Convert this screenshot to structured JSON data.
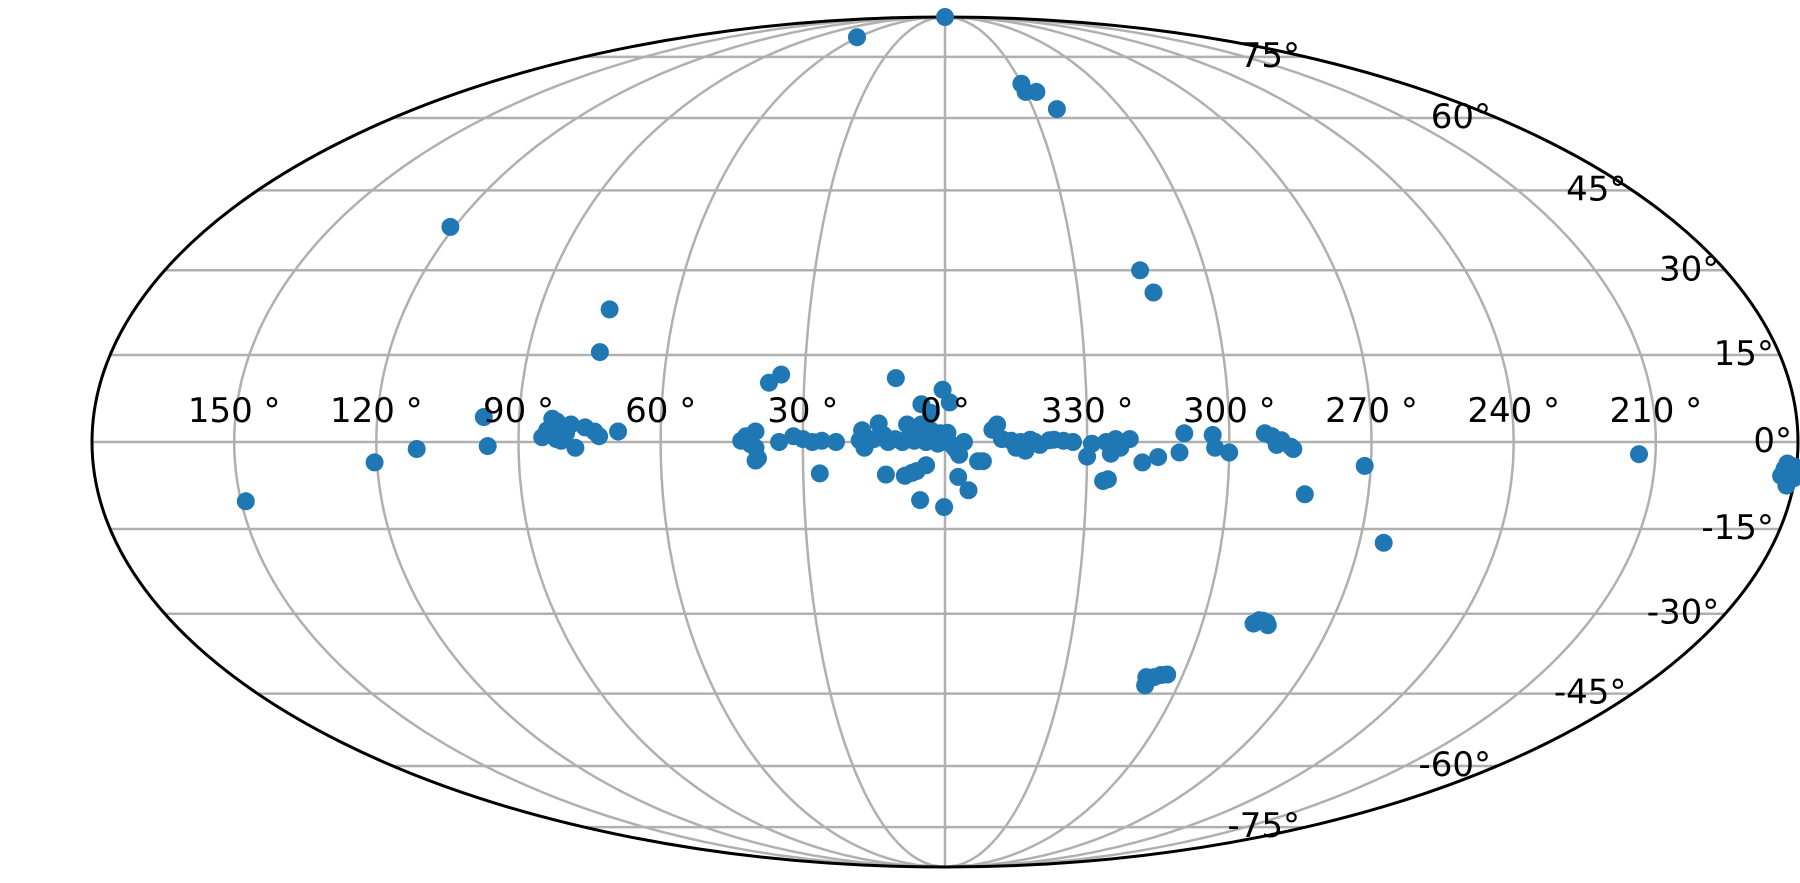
{
  "chart_data": {
    "type": "scatter",
    "projection": "mollweide",
    "title": "",
    "xlabel": "",
    "ylabel": "",
    "grid": true,
    "lon_tick_labels": [
      "150 °",
      "120 °",
      "90 °",
      "60 °",
      "30 °",
      "0 °",
      "330 °",
      "300 °",
      "270 °",
      "240 °",
      "210 °"
    ],
    "lon_tick_values": [
      150,
      120,
      90,
      60,
      30,
      0,
      330,
      300,
      270,
      240,
      210
    ],
    "lat_tick_labels": [
      "-75°",
      "-60°",
      "-45°",
      "-30°",
      "-15°",
      "0°",
      "15°",
      "30°",
      "45°",
      "60°",
      "75°"
    ],
    "lat_tick_values": [
      -75,
      -60,
      -45,
      -30,
      -15,
      0,
      15,
      30,
      45,
      60,
      75
    ],
    "colors": {
      "points": "#1f77b4",
      "grid": "#b0b0b0",
      "frame": "#000000"
    },
    "points": [
      {
        "lon": 61,
        "lat": 81
      },
      {
        "lon": 357,
        "lat": 90
      },
      {
        "lon": 330,
        "lat": 68
      },
      {
        "lon": 330,
        "lat": 66
      },
      {
        "lon": 326,
        "lat": 66
      },
      {
        "lon": 322,
        "lat": 62
      },
      {
        "lon": 121,
        "lat": 38
      },
      {
        "lon": 315,
        "lat": 30
      },
      {
        "lon": 313,
        "lat": 26
      },
      {
        "lon": 74.5,
        "lat": 23
      },
      {
        "lon": 74.5,
        "lat": 15.5
      },
      {
        "lon": 37.5,
        "lat": 10.2
      },
      {
        "lon": 35,
        "lat": 11.6
      },
      {
        "lon": 10.5,
        "lat": 11
      },
      {
        "lon": 0.5,
        "lat": 9
      },
      {
        "lon": 359,
        "lat": 6.8
      },
      {
        "lon": 5,
        "lat": 6.5
      },
      {
        "lon": 3,
        "lat": 5
      },
      {
        "lon": 83,
        "lat": 4
      },
      {
        "lon": 82,
        "lat": 3.5
      },
      {
        "lon": 79,
        "lat": 3
      },
      {
        "lon": 76,
        "lat": 2.5
      },
      {
        "lon": 80,
        "lat": 1.5
      },
      {
        "lon": 84,
        "lat": 2
      },
      {
        "lon": 74,
        "lat": 1.8
      },
      {
        "lon": 69,
        "lat": 1.8
      },
      {
        "lon": 85,
        "lat": 0.8
      },
      {
        "lon": 81,
        "lat": 0.2
      },
      {
        "lon": 78,
        "lat": -1
      },
      {
        "lon": 73,
        "lat": 1
      },
      {
        "lon": 82,
        "lat": 0.5
      },
      {
        "lon": 40,
        "lat": 1.8
      },
      {
        "lon": 42,
        "lat": 1
      },
      {
        "lon": 43,
        "lat": 0.2
      },
      {
        "lon": 41,
        "lat": -0.4
      },
      {
        "lon": 40,
        "lat": -1
      },
      {
        "lon": 39.5,
        "lat": -2.8
      },
      {
        "lon": 40,
        "lat": -3.2
      },
      {
        "lon": 35,
        "lat": 0
      },
      {
        "lon": 32,
        "lat": 1
      },
      {
        "lon": 30,
        "lat": 0.5
      },
      {
        "lon": 28,
        "lat": 0
      },
      {
        "lon": 26,
        "lat": 0.2
      },
      {
        "lon": 23,
        "lat": 0
      },
      {
        "lon": 26.5,
        "lat": -5.4
      },
      {
        "lon": 17.5,
        "lat": 2
      },
      {
        "lon": 18,
        "lat": 0.3
      },
      {
        "lon": 17,
        "lat": -1
      },
      {
        "lon": 16,
        "lat": 0.2
      },
      {
        "lon": 15,
        "lat": 0.5
      },
      {
        "lon": 14,
        "lat": 3.2
      },
      {
        "lon": 13,
        "lat": 1.2
      },
      {
        "lon": 12,
        "lat": 0
      },
      {
        "lon": 10.5,
        "lat": 0.5
      },
      {
        "lon": 9,
        "lat": 0
      },
      {
        "lon": 8,
        "lat": 3
      },
      {
        "lon": 7.5,
        "lat": 1
      },
      {
        "lon": 6.5,
        "lat": 0.2
      },
      {
        "lon": 5.5,
        "lat": 1.5
      },
      {
        "lon": 5,
        "lat": 3
      },
      {
        "lon": 4,
        "lat": 0
      },
      {
        "lon": 3,
        "lat": 2
      },
      {
        "lon": 2,
        "lat": 0.5
      },
      {
        "lon": 1.5,
        "lat": -0.3
      },
      {
        "lon": 1,
        "lat": 1.5
      },
      {
        "lon": 0.5,
        "lat": 0.5
      },
      {
        "lon": 359.5,
        "lat": 1.6
      },
      {
        "lon": 359,
        "lat": -0.2
      },
      {
        "lon": 358,
        "lat": -1
      },
      {
        "lon": 357,
        "lat": -2.2
      },
      {
        "lon": 357.5,
        "lat": -1.5
      },
      {
        "lon": 356,
        "lat": 0
      },
      {
        "lon": 12.5,
        "lat": -5.6
      },
      {
        "lon": 8.5,
        "lat": -5.8
      },
      {
        "lon": 7,
        "lat": -5.3
      },
      {
        "lon": 6,
        "lat": -5
      },
      {
        "lon": 4,
        "lat": -4
      },
      {
        "lon": 5.3,
        "lat": -10
      },
      {
        "lon": 0.2,
        "lat": -11.2
      },
      {
        "lon": 357.2,
        "lat": -6
      },
      {
        "lon": 355,
        "lat": -8.3
      },
      {
        "lon": 353,
        "lat": -3.3
      },
      {
        "lon": 352,
        "lat": -3.3
      },
      {
        "lon": 350,
        "lat": 2.1
      },
      {
        "lon": 349,
        "lat": 3
      },
      {
        "lon": 348,
        "lat": 0.5
      },
      {
        "lon": 346,
        "lat": 0.2
      },
      {
        "lon": 345,
        "lat": -1
      },
      {
        "lon": 344,
        "lat": 0
      },
      {
        "lon": 343,
        "lat": -1.5
      },
      {
        "lon": 342,
        "lat": 0.4
      },
      {
        "lon": 341,
        "lat": 0
      },
      {
        "lon": 340,
        "lat": -0.5
      },
      {
        "lon": 338,
        "lat": 0.3
      },
      {
        "lon": 337,
        "lat": 0.4
      },
      {
        "lon": 335,
        "lat": 0.2
      },
      {
        "lon": 333,
        "lat": 0
      },
      {
        "lon": 330,
        "lat": -2.5
      },
      {
        "lon": 329,
        "lat": -0.3
      },
      {
        "lon": 326,
        "lat": 0
      },
      {
        "lon": 325,
        "lat": -2
      },
      {
        "lon": 324,
        "lat": 0.5
      },
      {
        "lon": 323,
        "lat": -1
      },
      {
        "lon": 321,
        "lat": 0.5
      },
      {
        "lon": 326.5,
        "lat": -6.7
      },
      {
        "lon": 325.5,
        "lat": -6.4
      },
      {
        "lon": 318.3,
        "lat": -3.5
      },
      {
        "lon": 315,
        "lat": -2.6
      },
      {
        "lon": 310.5,
        "lat": -1.8
      },
      {
        "lon": 309.5,
        "lat": 1.5
      },
      {
        "lon": 303.5,
        "lat": 1.2
      },
      {
        "lon": 303,
        "lat": -1
      },
      {
        "lon": 300,
        "lat": -1.8
      },
      {
        "lon": 292.5,
        "lat": 1.5
      },
      {
        "lon": 291,
        "lat": 1
      },
      {
        "lon": 290,
        "lat": -0.5
      },
      {
        "lon": 289,
        "lat": 0.3
      },
      {
        "lon": 287,
        "lat": -0.8
      },
      {
        "lon": 286.5,
        "lat": -1.2
      },
      {
        "lon": 283.5,
        "lat": -9
      },
      {
        "lon": 271.3,
        "lat": -4.1
      },
      {
        "lon": 264.7,
        "lat": -17.4
      },
      {
        "lon": 288,
        "lat": -31.8
      },
      {
        "lon": 287,
        "lat": -31.2
      },
      {
        "lon": 286,
        "lat": -31.3
      },
      {
        "lon": 285,
        "lat": -31.6
      },
      {
        "lon": 284.5,
        "lat": -32.1
      },
      {
        "lon": 309,
        "lat": -41.8
      },
      {
        "lon": 308.5,
        "lat": -43.4
      },
      {
        "lon": 307,
        "lat": -41.8
      },
      {
        "lon": 305.5,
        "lat": -41.4
      },
      {
        "lon": 304,
        "lat": -41.3
      },
      {
        "lon": 213.5,
        "lat": -2.1
      },
      {
        "lon": 183,
        "lat": -5.8
      },
      {
        "lon": 182.5,
        "lat": -4.6
      },
      {
        "lon": 182,
        "lat": -3.7
      },
      {
        "lon": 181.5,
        "lat": -6
      },
      {
        "lon": 181,
        "lat": -5
      },
      {
        "lon": 181.5,
        "lat": -7.5
      },
      {
        "lon": 180.5,
        "lat": -4.2
      },
      {
        "lon": 180.2,
        "lat": -6.2
      },
      {
        "lon": 149,
        "lat": -10.2
      },
      {
        "lon": 120.5,
        "lat": -3.5
      },
      {
        "lon": 111.5,
        "lat": -1.2
      },
      {
        "lon": 97.5,
        "lat": 4.3
      },
      {
        "lon": 96.5,
        "lat": -0.7
      }
    ]
  }
}
